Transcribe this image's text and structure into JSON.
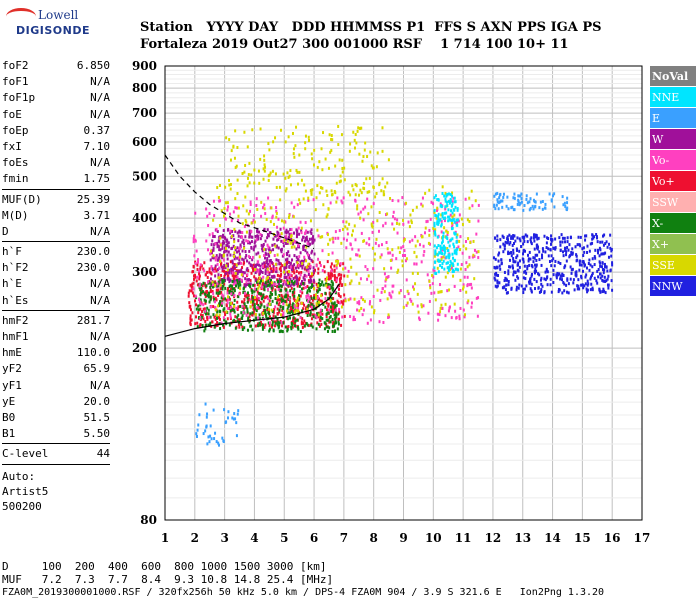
{
  "logo": {
    "line1": "Lowell",
    "line2": "DIGISONDE"
  },
  "header": {
    "row1": "Station   YYYY DAY   DDD HHMMSS P1  FFS S AXN PPS IGA PS",
    "row2": "Fortaleza 2019 Out27 300 001000 RSF    1 714 100 10+ 11"
  },
  "params": [
    {
      "name": "foF2",
      "value": "6.850"
    },
    {
      "name": "foF1",
      "value": "N/A"
    },
    {
      "name": "foF1p",
      "value": "N/A"
    },
    {
      "name": "foE",
      "value": "N/A"
    },
    {
      "name": "foEp",
      "value": "0.37"
    },
    {
      "name": "fxI",
      "value": "7.10"
    },
    {
      "name": "foEs",
      "value": "N/A"
    },
    {
      "name": "fmin",
      "value": "1.75"
    },
    {
      "sep": true
    },
    {
      "name": "MUF(D)",
      "value": "25.39"
    },
    {
      "name": "M(D)",
      "value": "3.71"
    },
    {
      "name": "D",
      "value": "N/A"
    },
    {
      "sep": true
    },
    {
      "name": "h`F",
      "value": "230.0"
    },
    {
      "name": "h`F2",
      "value": "230.0"
    },
    {
      "name": "h`E",
      "value": "N/A"
    },
    {
      "name": "h`Es",
      "value": "N/A"
    },
    {
      "sep": true
    },
    {
      "name": "hmF2",
      "value": "281.7"
    },
    {
      "name": "hmF1",
      "value": "N/A"
    },
    {
      "name": "hmE",
      "value": "110.0"
    },
    {
      "name": "yF2",
      "value": "65.9"
    },
    {
      "name": "yF1",
      "value": "N/A"
    },
    {
      "name": "yE",
      "value": "20.0"
    },
    {
      "name": "B0",
      "value": "51.5"
    },
    {
      "name": "B1",
      "value": "5.50"
    },
    {
      "sep": true
    },
    {
      "name": "C-level",
      "value": "44"
    },
    {
      "sep": true
    }
  ],
  "auto": {
    "line1": "Auto:",
    "line2": "Artist5",
    "line3": "500200"
  },
  "legend": [
    {
      "label": "NoVal",
      "color": "#808080"
    },
    {
      "label": "NNE",
      "color": "#00e5ff"
    },
    {
      "label": "E",
      "color": "#3aa0ff"
    },
    {
      "label": "W",
      "color": "#a0109a"
    },
    {
      "label": "Vo-",
      "color": "#ff40c0"
    },
    {
      "label": "Vo+",
      "color": "#ee1030"
    },
    {
      "label": "SSW",
      "color": "#ffb0b0"
    },
    {
      "label": "X-",
      "color": "#108010"
    },
    {
      "label": "X+",
      "color": "#90c050"
    },
    {
      "label": "SSE",
      "color": "#d8d800"
    },
    {
      "label": "NNW",
      "color": "#2020e0"
    }
  ],
  "chart_data": {
    "type": "scatter",
    "title": "",
    "xlabel": "",
    "ylabel": "",
    "xlim": [
      1,
      17
    ],
    "ylim": [
      80,
      900
    ],
    "yscale": "log",
    "x_ticks": [
      1,
      2,
      3,
      4,
      5,
      6,
      7,
      8,
      9,
      10,
      11,
      12,
      13,
      14,
      15,
      16,
      17
    ],
    "y_ticks": [
      80,
      200,
      300,
      400,
      500,
      600,
      700,
      800,
      900
    ],
    "grid": true,
    "legend_position": "right",
    "clusters": [
      {
        "label": "Vo+",
        "x": [
          1.75,
          7.0
        ],
        "y": [
          225,
          320
        ]
      },
      {
        "label": "W",
        "x": [
          2.5,
          6.0
        ],
        "y": [
          280,
          380
        ]
      },
      {
        "label": "X-",
        "x": [
          2.0,
          6.8
        ],
        "y": [
          220,
          290
        ]
      },
      {
        "label": "Vo-",
        "x": [
          1.9,
          11.5
        ],
        "y": [
          230,
          450
        ]
      },
      {
        "label": "SSE",
        "x": [
          2.5,
          11.5
        ],
        "y": [
          240,
          480
        ]
      },
      {
        "label": "NNE",
        "x": [
          10.0,
          10.8
        ],
        "y": [
          300,
          460
        ]
      },
      {
        "label": "E",
        "x": [
          12.0,
          14.5
        ],
        "y": [
          420,
          460
        ]
      },
      {
        "label": "NNW",
        "x": [
          12.0,
          16.0
        ],
        "y": [
          270,
          370
        ]
      },
      {
        "label": "E",
        "x": [
          2.0,
          3.5
        ],
        "y": [
          120,
          150
        ]
      },
      {
        "label": "SSE",
        "x": [
          3.0,
          8.5
        ],
        "y": [
          460,
          660
        ]
      }
    ],
    "traces": [
      {
        "name": "dashed",
        "x": [
          1.0,
          1.5,
          2.0,
          2.5,
          3.0,
          3.5,
          4.0,
          4.5,
          5.0,
          5.5,
          6.0
        ],
        "y": [
          560,
          500,
          460,
          430,
          410,
          390,
          380,
          370,
          360,
          350,
          340
        ]
      },
      {
        "name": "profile",
        "x": [
          1.0,
          2.0,
          3.0,
          4.0,
          5.0,
          6.0,
          6.5,
          6.85
        ],
        "y": [
          213,
          222,
          228,
          232,
          236,
          246,
          260,
          282
        ]
      }
    ]
  },
  "bottom": {
    "line1": "D     100  200  400  600  800 1000 1500 3000 [km]",
    "line2": "MUF   7.2  7.3  7.7  8.4  9.3 10.8 14.8 25.4 [MHz]",
    "line3": "FZA0M_2019300001000.RSF / 320fx256h 50 kHz 5.0 km / DPS-4 FZA0M 904 / 3.9 S 321.6 E   Ion2Png 1.3.20"
  }
}
